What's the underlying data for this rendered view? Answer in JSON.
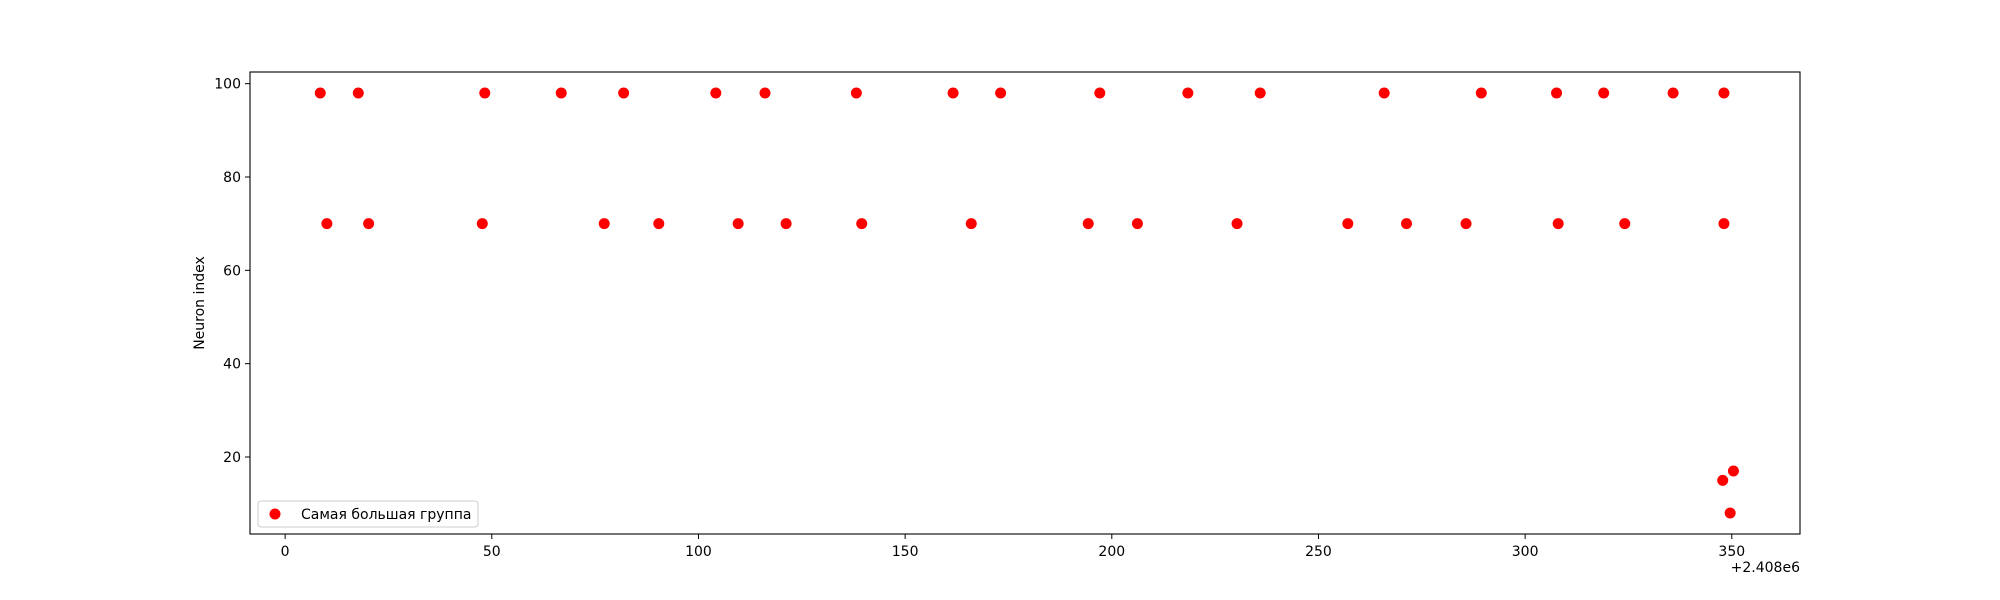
{
  "chart_data": {
    "type": "scatter",
    "title": "",
    "xlabel": "",
    "ylabel": "Neuron index",
    "x_offset_label": "+2.408e6",
    "xlim": [
      2407991.5,
      2408366.5
    ],
    "ylim": [
      3.5,
      102.5
    ],
    "xticks": [
      0,
      50,
      100,
      150,
      200,
      250,
      300,
      350
    ],
    "yticks": [
      20,
      40,
      60,
      80,
      100
    ],
    "grid": false,
    "legend_position": "lower-left",
    "marker_color": "#ff0000",
    "series": [
      {
        "name": "Самая большая группа",
        "points": [
          {
            "x": 2408008.5,
            "y": 98
          },
          {
            "x": 2408010.1,
            "y": 70
          },
          {
            "x": 2408017.7,
            "y": 98
          },
          {
            "x": 2408020.2,
            "y": 70
          },
          {
            "x": 2408047.7,
            "y": 70
          },
          {
            "x": 2408048.3,
            "y": 98
          },
          {
            "x": 2408066.8,
            "y": 98
          },
          {
            "x": 2408077.2,
            "y": 70
          },
          {
            "x": 2408081.9,
            "y": 98
          },
          {
            "x": 2408090.4,
            "y": 70
          },
          {
            "x": 2408104.2,
            "y": 98
          },
          {
            "x": 2408109.6,
            "y": 70
          },
          {
            "x": 2408116.1,
            "y": 98
          },
          {
            "x": 2408121.2,
            "y": 70
          },
          {
            "x": 2408138.2,
            "y": 98
          },
          {
            "x": 2408139.5,
            "y": 70
          },
          {
            "x": 2408161.6,
            "y": 98
          },
          {
            "x": 2408166.0,
            "y": 70
          },
          {
            "x": 2408173.1,
            "y": 98
          },
          {
            "x": 2408194.3,
            "y": 70
          },
          {
            "x": 2408197.1,
            "y": 98
          },
          {
            "x": 2408206.2,
            "y": 70
          },
          {
            "x": 2408218.4,
            "y": 98
          },
          {
            "x": 2408230.3,
            "y": 70
          },
          {
            "x": 2408235.9,
            "y": 98
          },
          {
            "x": 2408257.1,
            "y": 70
          },
          {
            "x": 2408265.9,
            "y": 98
          },
          {
            "x": 2408271.3,
            "y": 70
          },
          {
            "x": 2408285.7,
            "y": 70
          },
          {
            "x": 2408289.4,
            "y": 98
          },
          {
            "x": 2408307.6,
            "y": 98
          },
          {
            "x": 2408308.0,
            "y": 70
          },
          {
            "x": 2408319.0,
            "y": 98
          },
          {
            "x": 2408324.1,
            "y": 70
          },
          {
            "x": 2408335.8,
            "y": 98
          },
          {
            "x": 2408347.8,
            "y": 15
          },
          {
            "x": 2408348.1,
            "y": 98
          },
          {
            "x": 2408348.1,
            "y": 70
          },
          {
            "x": 2408349.6,
            "y": 8
          },
          {
            "x": 2408350.4,
            "y": 17
          }
        ]
      }
    ]
  }
}
